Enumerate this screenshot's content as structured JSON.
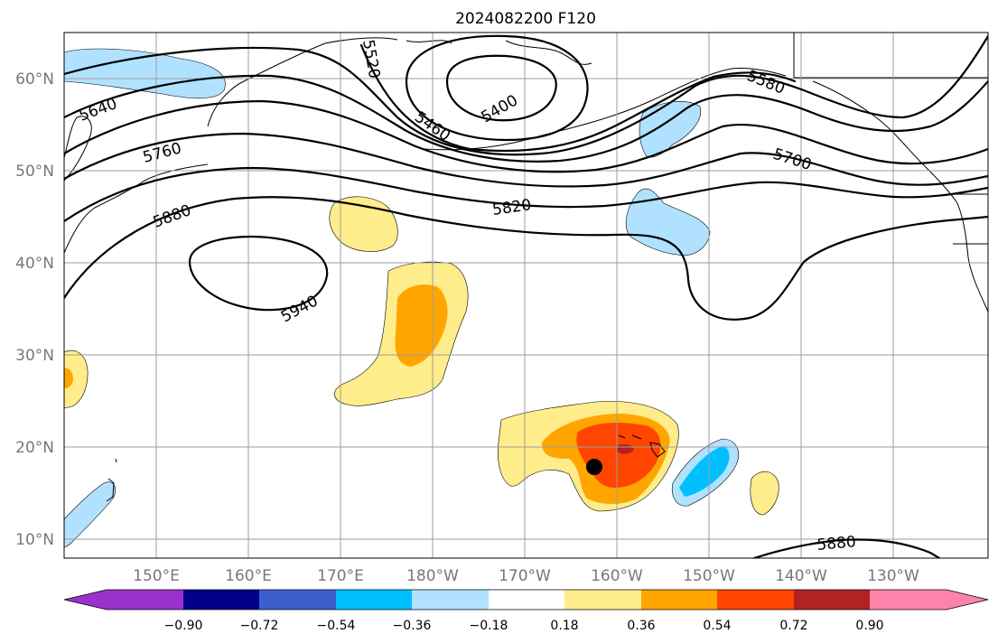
{
  "title": "2024082200 F120",
  "latitude_labels": [
    "60°N",
    "50°N",
    "40°N",
    "30°N",
    "20°N",
    "10°N"
  ],
  "longitude_labels": [
    "150°E",
    "160°E",
    "170°E",
    "180°W",
    "170°W",
    "160°W",
    "150°W",
    "140°W",
    "130°W"
  ],
  "contours": [
    {
      "value": "5400",
      "label": "5400"
    },
    {
      "value": "5460",
      "label": "5460"
    },
    {
      "value": "5520",
      "label": "5520"
    },
    {
      "value": "5580",
      "label": "5580"
    },
    {
      "value": "5640",
      "label": "5640"
    },
    {
      "value": "5700",
      "label": "5700"
    },
    {
      "value": "5760",
      "label": "5760"
    },
    {
      "value": "5820",
      "label": "5820"
    },
    {
      "value": "5880",
      "label": "5880"
    },
    {
      "value": "5880b",
      "label": "5880"
    },
    {
      "value": "5940",
      "label": "5940"
    }
  ],
  "colorbar": {
    "ticks": [
      "−0.90",
      "−0.72",
      "−0.54",
      "−0.36",
      "−0.18",
      "0.18",
      "0.36",
      "0.54",
      "0.72",
      "0.90"
    ],
    "colors": {
      "under": "#9932cc",
      "b1": "#00008b",
      "b2": "#3a5fcd",
      "b3": "#00bfff",
      "b4": "#b0e2ff",
      "b5": "#ffffff",
      "b6": "#ffec8b",
      "b7": "#ffa500",
      "b8": "#ff4500",
      "b9": "#b22222",
      "over": "#ff82ab"
    }
  },
  "marker": {
    "name": "storm-center",
    "color": "#000000"
  }
}
